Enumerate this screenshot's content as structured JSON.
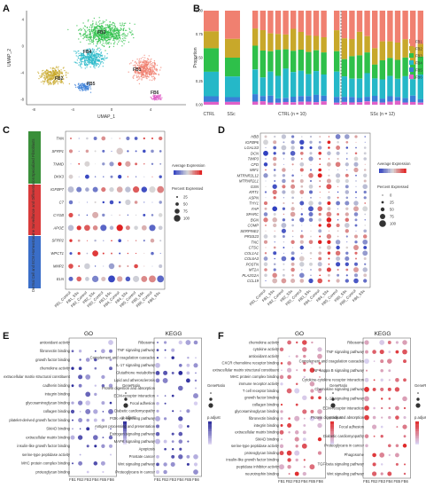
{
  "panels": {
    "A": {
      "label": "A",
      "xlabel": "UMAP_1",
      "ylabel": "UMAP_2",
      "x_ticks": [
        "-8",
        "-4",
        "0",
        "4"
      ],
      "y_ticks": [
        "4",
        "0",
        "-4",
        "-8"
      ],
      "clusters": [
        {
          "name": "FB1",
          "color": "#f08070"
        },
        {
          "name": "FB2",
          "color": "#c8a82a"
        },
        {
          "name": "FB3",
          "color": "#2ec04a"
        },
        {
          "name": "FB4",
          "color": "#25b8c8"
        },
        {
          "name": "FB5",
          "color": "#3a7fd8"
        },
        {
          "name": "FB6",
          "color": "#e060c8"
        }
      ]
    },
    "B": {
      "label": "B",
      "ylabel": "Proportion",
      "y_ticks": [
        "1.00",
        "0.75",
        "0.50",
        "0.25",
        "0.00"
      ],
      "group_labels": [
        "CTRL",
        "SSc"
      ],
      "sample_group_labels": [
        "CTRL (n = 10)",
        "SSc (n = 12)"
      ],
      "legend": [
        "FB1",
        "FB2",
        "FB3",
        "FB4",
        "FB5",
        "FB6"
      ],
      "colors": [
        "#f08070",
        "#c8a82a",
        "#2ec04a",
        "#25b8c8",
        "#3a7fd8",
        "#e060c8"
      ],
      "summary": {
        "CTRL": [
          0.22,
          0.18,
          0.25,
          0.26,
          0.06,
          0.03
        ],
        "SSc": [
          0.3,
          0.2,
          0.2,
          0.22,
          0.05,
          0.03
        ]
      }
    },
    "C": {
      "label": "C",
      "genes": [
        "TNN",
        "SFRP1",
        "TNMD",
        "DKK3",
        "IGFBP7",
        "C7",
        "CYGB",
        "APOE",
        "SFRP2",
        "WPCT1",
        "MMP2",
        "ELN"
      ],
      "groups": [
        {
          "name": "Specialized Fibroblasts",
          "color": "#3a8f3a"
        },
        {
          "name": "Immune Surveillance and Differentiation",
          "color": "#d83a3a"
        },
        {
          "name": "Dermal Cell and ECM Homeostasis",
          "color": "#3a6ec8"
        }
      ],
      "x_labels": [
        "FB1_Control",
        "FB1_SSc",
        "FB2_Control",
        "FB2_SSc",
        "FB3_Control",
        "FB3_SSc",
        "FB4_Control",
        "FB4_SSc",
        "FB5_Control",
        "FB5_SSc",
        "FB6_Control",
        "FB6_SSc"
      ],
      "legend_expr": "Average Expression",
      "legend_pct": "Percent Expressed",
      "pct_ticks": [
        "25",
        "50",
        "75",
        "100"
      ]
    },
    "D": {
      "label": "D",
      "genes": [
        "HBB",
        "IGFBP6",
        "LGALS3",
        "DCN",
        "TIMP3",
        "CFD",
        "WIF1",
        "MTRNR2L12",
        "MTRNR2L1",
        "GSN",
        "KRT1",
        "ASPN",
        "THY1",
        "FAP",
        "SPARC",
        "BGN",
        "COMP",
        "SERPINE2",
        "PRSS23",
        "TNC",
        "CTSC",
        "COL1A1",
        "COL6A3",
        "POSTN",
        "MT2A",
        "PLA2G2A",
        "CCL19"
      ],
      "x_labels": [
        "FB1_Control",
        "FB1_SSc",
        "FB2_Control",
        "FB2_SSc",
        "FB3_Control",
        "FB3_SSc",
        "FB4_Control",
        "FB4_SSc",
        "FB5_Control",
        "FB5_SSc",
        "FB6_Control",
        "FB6_SSc"
      ],
      "legend_expr": "Average Expression",
      "legend_pct": "Percent Expressed",
      "pct_ticks": [
        "0",
        "25",
        "50",
        "75",
        "100"
      ]
    },
    "E": {
      "label": "E",
      "go_title": "GO",
      "kegg_title": "KEGG",
      "go_terms": [
        "antioxidant activity",
        "fibronectin binding",
        "growth factor binding",
        "chemokine activity",
        "extracellular matrix structural constituent",
        "cadherin binding",
        "integrin binding",
        "glycosaminoglycan binding",
        "collagen binding",
        "platelet-derived growth factor binding",
        "SMAD binding",
        "extracellular matrix binding",
        "insulin-like growth factor binding",
        "serine-type peptidase activity",
        "MHC protein complex binding",
        "proteoglycan binding"
      ],
      "kegg_terms": [
        "Ribosome",
        "TNF signaling pathway",
        "Complement and coagulation cascades",
        "IL-17 signaling pathway",
        "Glutathione metabolism",
        "Lipid and atherosclerosis",
        "Protein digestion and absorption",
        "ECM-receptor interaction",
        "Focal adhesion",
        "Diabetic cardiomyopathy",
        "PI3K-Akt signaling pathway",
        "Antigen processing and presentation",
        "Estrogen signaling pathway",
        "MAPK signaling pathway",
        "Apoptosis",
        "Prostate cancer",
        "Wnt signaling pathway",
        "Proteoglycans in cancer"
      ],
      "x_labels": [
        "FB1",
        "FB2",
        "FB3",
        "FB4",
        "FB5",
        "FB6"
      ],
      "legend_ratio": "GeneRatio",
      "legend_p": "p.adjust",
      "accent": "#2a2a9a"
    },
    "F": {
      "label": "F",
      "go_title": "GO",
      "kegg_title": "KEGG",
      "go_terms": [
        "chemokine activity",
        "cytokine activity",
        "antioxidant activity",
        "CXCR chemokine receptor binding",
        "extracellular matrix structural constituent",
        "MHC protein complex binding",
        "immune receptor activity",
        "T cell receptor binding",
        "growth factor binding",
        "collagen binding",
        "glycosaminoglycan binding",
        "fibronectin binding",
        "integrin binding",
        "extracellular matrix binding",
        "SMAD binding",
        "serine-type peptidase activity",
        "proteoglycan binding",
        "insulin-like growth factor binding",
        "peptidase inhibitor activity",
        "neurotrophin binding"
      ],
      "kegg_terms": [
        "Ribosome",
        "TNF signaling pathway",
        "Complement and coagulation cascades",
        "NF-kappa B signaling pathway",
        "Cytokine-cytokine receptor interaction",
        "Chemokine signaling pathway",
        "IL-17 signaling pathway",
        "ECM-receptor interaction",
        "Protein digestion and absorption",
        "Focal adhesion",
        "Diabetic cardiomyopathy",
        "Proteoglycans in cancer",
        "Phagosome",
        "TGF-beta signaling pathway",
        "Wnt signaling pathway"
      ],
      "x_labels": [
        "FB1",
        "FB2",
        "FB3",
        "FB4",
        "FB5",
        "FB6"
      ],
      "legend_ratio": "GeneRatio",
      "legend_p": "p.adjust",
      "accent": "#e02a2a"
    }
  }
}
